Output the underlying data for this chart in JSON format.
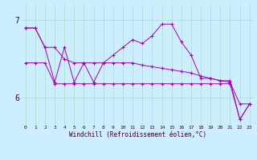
{
  "xlabel": "Windchill (Refroidissement éolien,°C)",
  "background_color": "#cceeff",
  "grid_color": "#aaddcc",
  "line_color": "#aa00aa",
  "x_ticks": [
    0,
    1,
    2,
    3,
    4,
    5,
    6,
    7,
    8,
    9,
    10,
    11,
    12,
    13,
    14,
    15,
    16,
    17,
    18,
    19,
    20,
    21,
    22,
    23
  ],
  "y_ticks": [
    6,
    7
  ],
  "ylim": [
    5.65,
    7.2
  ],
  "xlim": [
    -0.5,
    23.5
  ],
  "series1": [
    6.9,
    6.9,
    6.65,
    6.65,
    6.5,
    6.45,
    6.45,
    6.45,
    6.45,
    6.45,
    6.45,
    6.45,
    6.42,
    6.4,
    6.38,
    6.36,
    6.34,
    6.32,
    6.28,
    6.25,
    6.22,
    6.2,
    5.92,
    5.92
  ],
  "series2": [
    6.9,
    6.9,
    6.65,
    6.2,
    6.65,
    6.2,
    6.45,
    6.2,
    6.45,
    6.55,
    6.65,
    6.75,
    6.7,
    6.8,
    6.95,
    6.95,
    6.72,
    6.55,
    6.25,
    6.25,
    6.22,
    6.22,
    5.72,
    5.92
  ],
  "series3": [
    6.45,
    6.45,
    6.45,
    6.18,
    6.18,
    6.18,
    6.18,
    6.18,
    6.18,
    6.18,
    6.18,
    6.18,
    6.18,
    6.18,
    6.18,
    6.18,
    6.18,
    6.18,
    6.18,
    6.18,
    6.18,
    6.18,
    5.72,
    5.92
  ]
}
